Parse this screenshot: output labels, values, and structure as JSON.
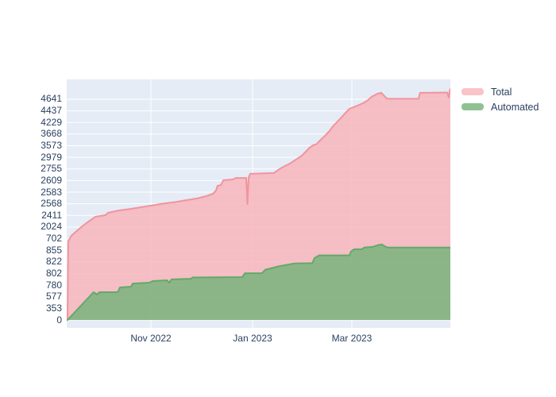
{
  "page": {
    "background": "#ffffff"
  },
  "chart_data": {
    "type": "area",
    "title": "",
    "xlabel": "",
    "ylabel": "",
    "layout_hints": {
      "plot_bg": "#e5ecf6",
      "grid_color": "#ffffff",
      "text_color": "#2a3f5f",
      "grid": "on",
      "legend_position": "outside-top-right"
    },
    "x_axis": {
      "type": "date",
      "ticks": [
        {
          "label": "Nov 2022",
          "f": 0.2195
        },
        {
          "label": "Jan 2023",
          "f": 0.4845
        },
        {
          "label": "Mar 2023",
          "f": 0.7433
        }
      ]
    },
    "y_axis": {
      "type": "category",
      "categories_bottom_to_top": [
        "0",
        "353",
        "577",
        "780",
        "802",
        "822",
        "855",
        "702",
        "2024",
        "2411",
        "2568",
        "2583",
        "2609",
        "2755",
        "2979",
        "3573",
        "3668",
        "4229",
        "4437",
        "4641"
      ]
    },
    "legend": {
      "items": [
        {
          "label": "Total",
          "swatch_color": "#f9c3c8"
        },
        {
          "label": "Automated",
          "swatch_color": "#8fc193"
        }
      ]
    },
    "series": [
      {
        "name": "Total",
        "fill": "rgba(249,178,184,0.8)",
        "line": "#f0949f",
        "points": [
          [
            0.002,
            0
          ],
          [
            0.004,
            6.77
          ],
          [
            0.012,
            7.25
          ],
          [
            0.033,
            7.86
          ],
          [
            0.054,
            8.41
          ],
          [
            0.075,
            8.89
          ],
          [
            0.101,
            9.02
          ],
          [
            0.108,
            9.23
          ],
          [
            0.137,
            9.43
          ],
          [
            0.168,
            9.57
          ],
          [
            0.195,
            9.71
          ],
          [
            0.219,
            9.84
          ],
          [
            0.25,
            10.01
          ],
          [
            0.282,
            10.15
          ],
          [
            0.313,
            10.32
          ],
          [
            0.34,
            10.46
          ],
          [
            0.364,
            10.66
          ],
          [
            0.381,
            10.87
          ],
          [
            0.389,
            11.14
          ],
          [
            0.393,
            11.55
          ],
          [
            0.402,
            11.62
          ],
          [
            0.408,
            12.03
          ],
          [
            0.433,
            12.1
          ],
          [
            0.441,
            12.23
          ],
          [
            0.468,
            12.23
          ],
          [
            0.471,
            9.98
          ],
          [
            0.474,
            12.23
          ],
          [
            0.478,
            12.58
          ],
          [
            0.54,
            12.65
          ],
          [
            0.551,
            12.92
          ],
          [
            0.565,
            13.19
          ],
          [
            0.582,
            13.47
          ],
          [
            0.598,
            13.81
          ],
          [
            0.613,
            14.15
          ],
          [
            0.625,
            14.56
          ],
          [
            0.633,
            14.83
          ],
          [
            0.642,
            15.04
          ],
          [
            0.65,
            15.11
          ],
          [
            0.658,
            15.38
          ],
          [
            0.671,
            15.79
          ],
          [
            0.683,
            16.2
          ],
          [
            0.696,
            16.75
          ],
          [
            0.712,
            17.3
          ],
          [
            0.727,
            17.84
          ],
          [
            0.737,
            18.18
          ],
          [
            0.758,
            18.46
          ],
          [
            0.772,
            18.66
          ],
          [
            0.783,
            18.87
          ],
          [
            0.795,
            19.21
          ],
          [
            0.81,
            19.48
          ],
          [
            0.82,
            19.55
          ],
          [
            0.826,
            19.34
          ],
          [
            0.832,
            19.14
          ],
          [
            0.836,
            19.04
          ],
          [
            0.917,
            19.04
          ],
          [
            0.921,
            19.55
          ],
          [
            0.992,
            19.58
          ],
          [
            0.996,
            19.14
          ],
          [
            0.998,
            19.69
          ],
          [
            1,
            19.89
          ]
        ]
      },
      {
        "name": "Automated",
        "fill": "rgba(120,180,124,0.85)",
        "line": "#63a96b",
        "points": [
          [
            0.002,
            0
          ],
          [
            0.07,
            2.39
          ],
          [
            0.079,
            2.19
          ],
          [
            0.085,
            2.39
          ],
          [
            0.133,
            2.39
          ],
          [
            0.139,
            2.8
          ],
          [
            0.168,
            2.87
          ],
          [
            0.172,
            3.14
          ],
          [
            0.215,
            3.21
          ],
          [
            0.224,
            3.35
          ],
          [
            0.261,
            3.42
          ],
          [
            0.267,
            3.21
          ],
          [
            0.273,
            3.49
          ],
          [
            0.323,
            3.55
          ],
          [
            0.329,
            3.66
          ],
          [
            0.458,
            3.69
          ],
          [
            0.464,
            4.01
          ],
          [
            0.509,
            4.03
          ],
          [
            0.518,
            4.33
          ],
          [
            0.532,
            4.44
          ],
          [
            0.553,
            4.63
          ],
          [
            0.573,
            4.74
          ],
          [
            0.594,
            4.87
          ],
          [
            0.64,
            4.89
          ],
          [
            0.646,
            5.33
          ],
          [
            0.658,
            5.56
          ],
          [
            0.737,
            5.56
          ],
          [
            0.741,
            5.9
          ],
          [
            0.749,
            6.08
          ],
          [
            0.77,
            6.1
          ],
          [
            0.776,
            6.24
          ],
          [
            0.799,
            6.31
          ],
          [
            0.814,
            6.47
          ],
          [
            0.822,
            6.49
          ],
          [
            0.828,
            6.36
          ],
          [
            0.836,
            6.24
          ],
          [
            1,
            6.24
          ]
        ]
      }
    ]
  }
}
